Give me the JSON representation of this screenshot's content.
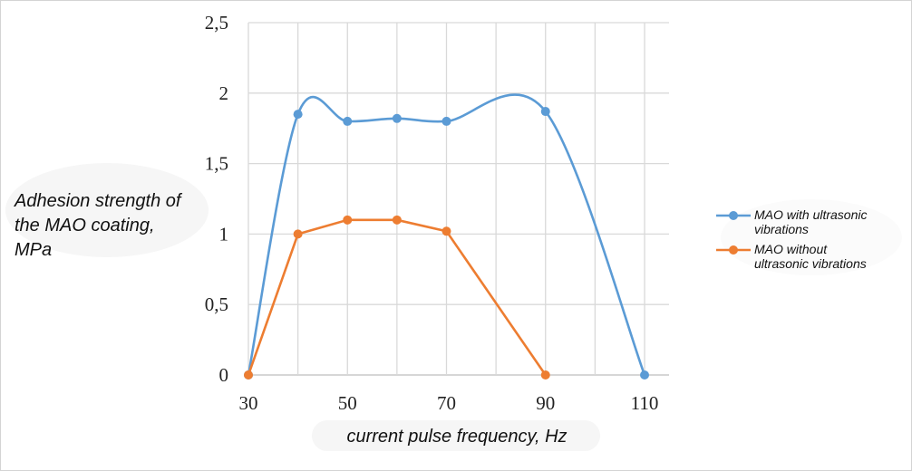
{
  "chart_data": {
    "type": "line",
    "xlabel": "current pulse frequency, Hz",
    "ylabel": [
      "Adhesion strength of",
      "the MAO coating,",
      "MPa"
    ],
    "xlim": [
      30,
      110
    ],
    "ylim": [
      0,
      2.5
    ],
    "x_tick_labels": [
      "30",
      "50",
      "70",
      "90",
      "110"
    ],
    "y_tick_labels": [
      "0",
      "0,5",
      "1",
      "1,5",
      "2",
      "2,5"
    ],
    "grid": true,
    "legend_position": "right",
    "series": [
      {
        "name": "MAO with ultrasonic vibrations",
        "legend_lines": [
          "MAO with ultrasonic",
          "vibrations"
        ],
        "color": "#5b9bd5",
        "smooth": true,
        "x": [
          30,
          40,
          50,
          60,
          70,
          90,
          110
        ],
        "y": [
          0,
          1.85,
          1.8,
          1.82,
          1.8,
          1.87,
          0
        ]
      },
      {
        "name": "MAO without ultrasonic vibrations",
        "legend_lines": [
          "MAO without",
          "ultrasonic vibrations"
        ],
        "color": "#ed7d31",
        "smooth": false,
        "x": [
          30,
          40,
          50,
          60,
          70,
          90
        ],
        "y": [
          0,
          1.0,
          1.1,
          1.1,
          1.02,
          0
        ]
      }
    ]
  }
}
